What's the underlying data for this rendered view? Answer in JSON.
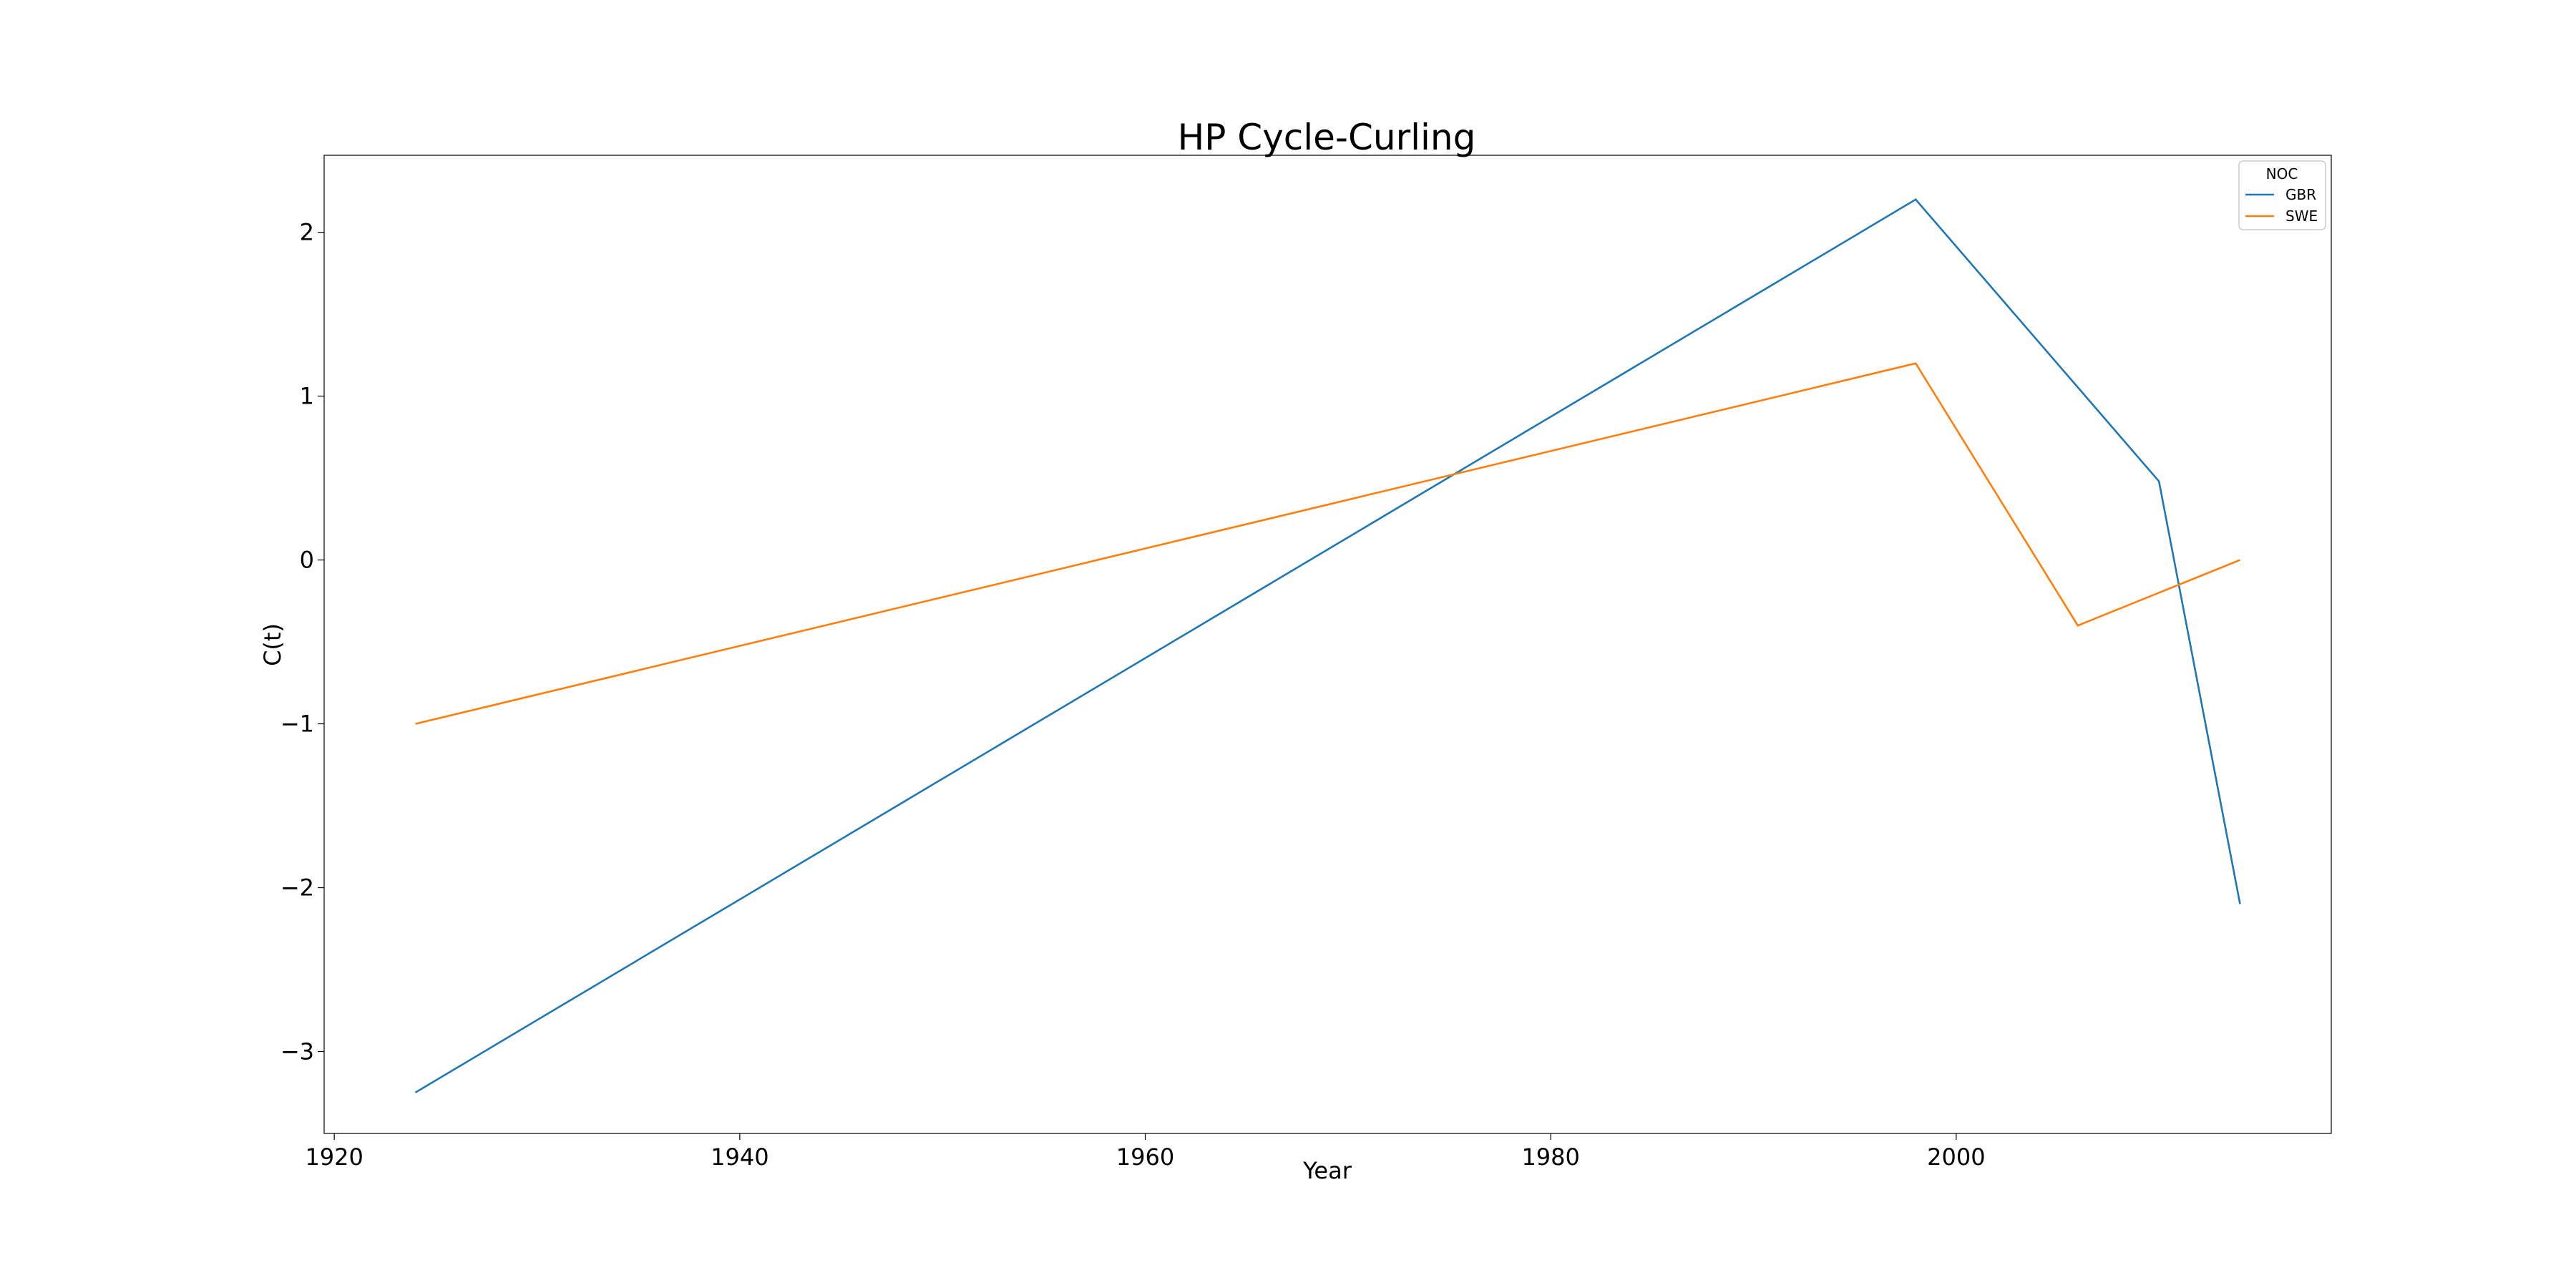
{
  "chart_data": {
    "type": "line",
    "title": "HP Cycle-Curling",
    "xlabel": "Year",
    "ylabel": "C(t)",
    "xlim": [
      1919.5,
      2018.5
    ],
    "ylim": [
      -3.5,
      2.47
    ],
    "xticks": [
      1920,
      1940,
      1960,
      1980,
      2000
    ],
    "yticks": [
      -3,
      -2,
      -1,
      0,
      1,
      2
    ],
    "ytick_labels": [
      "−3",
      "−2",
      "−1",
      "0",
      "1",
      "2"
    ],
    "grid": false,
    "legend": {
      "title": "NOC",
      "placement": "top-right"
    },
    "series": [
      {
        "name": "GBR",
        "color": "#1f77b4",
        "x": [
          1924,
          1998,
          2010,
          2014
        ],
        "y": [
          -3.25,
          2.2,
          0.48,
          -2.1
        ]
      },
      {
        "name": "SWE",
        "color": "#ff7f0e",
        "x": [
          1924,
          1998,
          2006,
          2014
        ],
        "y": [
          -1.0,
          1.2,
          -0.4,
          0.0
        ]
      }
    ]
  }
}
